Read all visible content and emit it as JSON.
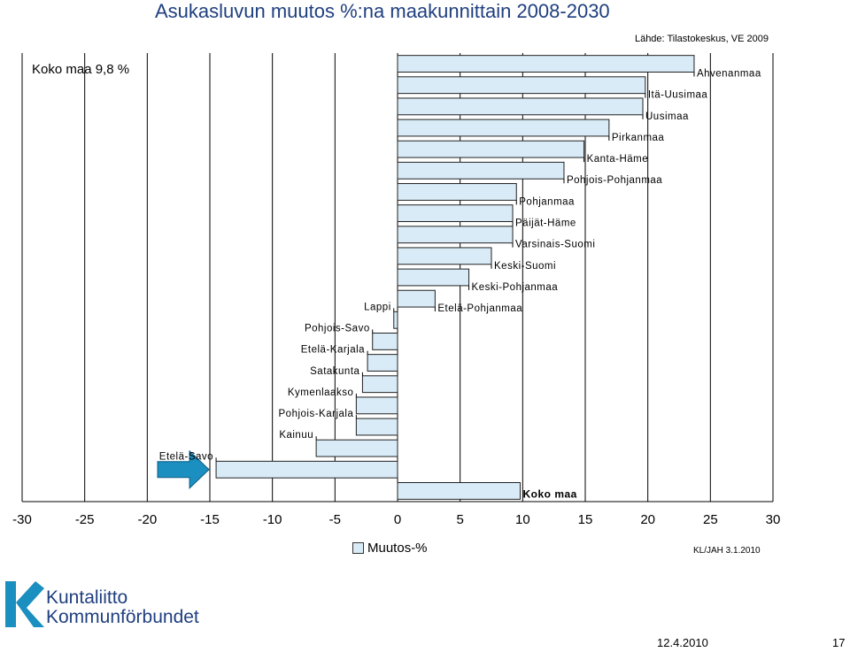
{
  "title": "Asukasluvun muutos %:na maakunnittain 2008-2030",
  "source": "Lähde: Tilastokeskus, VE 2009",
  "koko_maa_label": "Koko maa 9,8 %",
  "legend_label": "Muutos-%",
  "stamp": "KL/JAH 3.1.2010",
  "footer": {
    "date": "12.4.2010",
    "page": "17"
  },
  "logo": {
    "line1": "Kuntaliitto",
    "line2": "Kommunförbundet"
  },
  "colors": {
    "bar_fill": "#d8ebf7",
    "bar_stroke": "#222222",
    "arrow": "#1b8fbf",
    "title": "#1f3f7f"
  },
  "chart_data": {
    "type": "bar",
    "orientation": "horizontal",
    "xlim": [
      -30,
      30
    ],
    "xticks": [
      -30,
      -25,
      -20,
      -15,
      -10,
      -5,
      0,
      5,
      10,
      15,
      20,
      25,
      30
    ],
    "xlabel": "",
    "grid": "vertical",
    "highlight": "Etelä-Savo",
    "categories": [
      "Ahvenanmaa",
      "Itä-Uusimaa",
      "Uusimaa",
      "Pirkanmaa",
      "Kanta-Häme",
      "Pohjois-Pohjanmaa",
      "Pohjanmaa",
      "Päijät-Häme",
      "Varsinais-Suomi",
      "Keski-Suomi",
      "Keski-Pohjanmaa",
      "Etelä-Pohjanmaa",
      "Lappi",
      "Pohjois-Savo",
      "Etelä-Karjala",
      "Satakunta",
      "Kymenlaakso",
      "Pohjois-Karjala",
      "Kainuu",
      "Etelä-Savo",
      "Koko maa"
    ],
    "values": [
      23.7,
      19.8,
      19.6,
      16.9,
      14.9,
      13.3,
      9.5,
      9.2,
      9.2,
      7.5,
      5.7,
      3.0,
      -0.3,
      -2.0,
      -2.4,
      -2.8,
      -3.3,
      -3.3,
      -6.5,
      -14.5,
      9.8
    ]
  }
}
